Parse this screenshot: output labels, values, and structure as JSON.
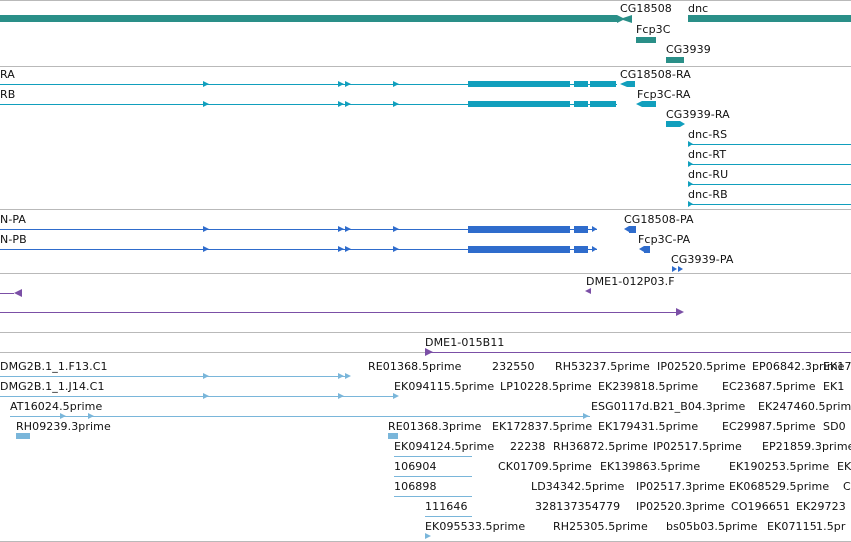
{
  "genome_browser": {
    "colors": {
      "gene": "#2a8f88",
      "transcript": "#119fbd",
      "protein": "#2f6ccc",
      "clone": "#7b4fa6",
      "est": "#7ab6da",
      "separator": "#b9b9b9"
    },
    "genes": {
      "labels": [
        "CG18508",
        "dnc",
        "Fcp3C",
        "CG3939"
      ]
    },
    "transcripts": {
      "labels": [
        "RA",
        "RB",
        "CG18508-RA",
        "Fcp3C-RA",
        "CG3939-RA",
        "dnc-RS",
        "dnc-RT",
        "dnc-RU",
        "dnc-RB"
      ]
    },
    "proteins": {
      "labels": [
        "N-PA",
        "N-PB",
        "CG18508-PA",
        "Fcp3C-PA",
        "CG3939-PA"
      ]
    },
    "clones": {
      "labels": [
        "DME1-012P03.F",
        "DME1-015B11"
      ]
    },
    "ests": {
      "labels": [
        "DMG2B.1_1.F13.C1",
        "RE01368.5prime",
        "232550",
        "RH53237.5prime",
        "IP02520.5prime",
        "EP06842.3prime",
        "EK17",
        "DMG2B.1_1.J14.C1",
        "EK094115.5prime",
        "LP10228.5prime",
        "EK239818.5prime",
        "EC23687.5prime",
        "EK1",
        "AT16024.5prime",
        "ESG0117d.B21_B04.3prime",
        "EK247460.5prime",
        "RH09239.3prime",
        "RE01368.3prime",
        "EK172837.5prime",
        "EK179431.5prime",
        "EC29987.5prime",
        "SD0",
        "EK094124.5prime",
        "22238",
        "RH36872.5prime",
        "IP02517.5prime",
        "EP21859.3prime",
        "106904",
        "CK01709.5prime",
        "EK139863.5prime",
        "EK190253.5prime",
        "EK",
        "106898",
        "LD34342.5prime",
        "IP02517.3prime",
        "EK068529.5prime",
        "C",
        "111646",
        "328137354779",
        "IP02520.3prime",
        "CO196651",
        "EK29723",
        "EK095533.5prime",
        "RH25305.5prime",
        "bs05b03.5prime",
        "EK07115",
        "1.5pr"
      ]
    }
  }
}
